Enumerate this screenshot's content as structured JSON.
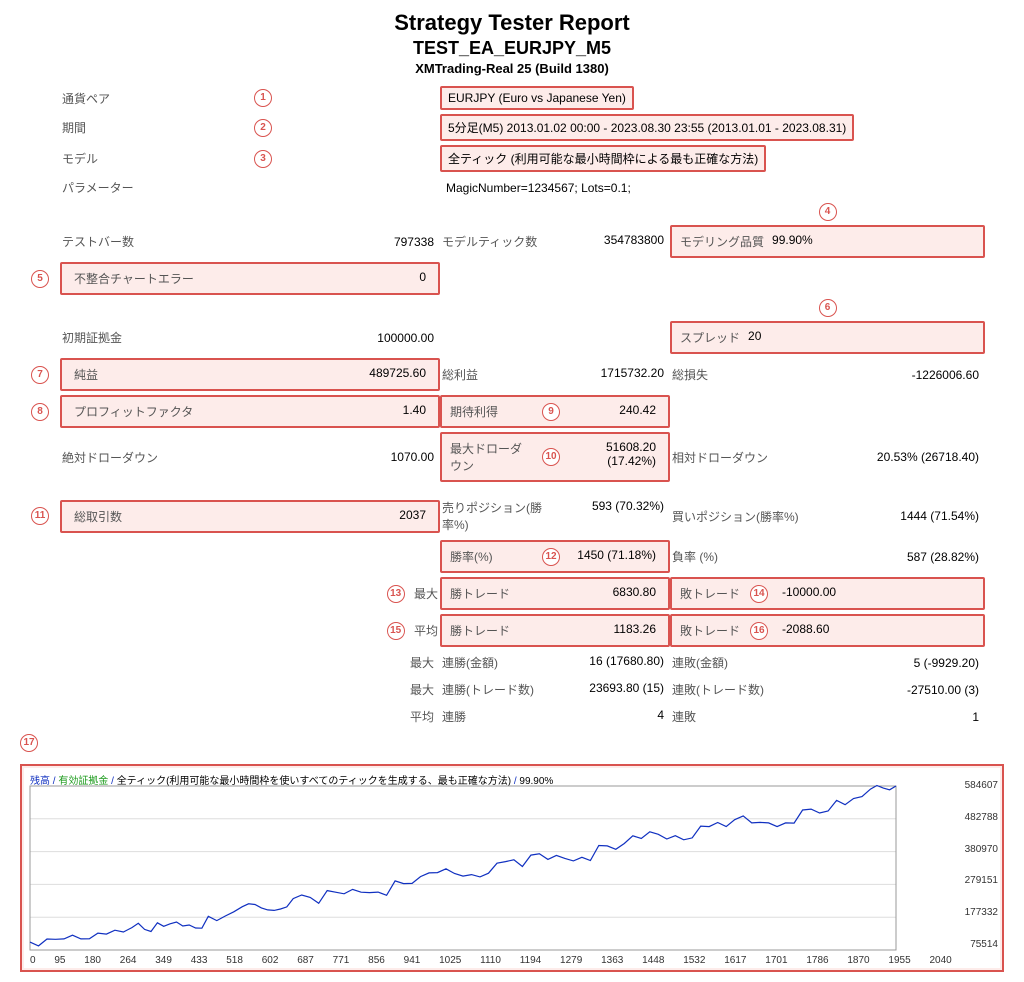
{
  "header": {
    "title": "Strategy Tester Report",
    "subtitle": "TEST_EA_EURJPY_M5",
    "server": "XMTrading-Real 25 (Build 1380)"
  },
  "marker_color": "#d9534f",
  "rows": {
    "pair": {
      "label": "通貨ペア",
      "value": "EURJPY (Euro vs Japanese Yen)",
      "num": "1"
    },
    "period": {
      "label": "期間",
      "value": "5分足(M5) 2013.01.02 00:00 - 2023.08.30 23:55 (2013.01.01 - 2023.08.31)",
      "num": "2"
    },
    "model": {
      "label": "モデル",
      "value": "全ティック (利用可能な最小時間枠による最も正確な方法)",
      "num": "3"
    },
    "params": {
      "label": "パラメーター",
      "value": "MagicNumber=1234567; Lots=0.1;"
    },
    "testbars": {
      "label": "テストバー数",
      "value": "797338"
    },
    "modelticks": {
      "label": "モデルティック数",
      "value": "354783800"
    },
    "quality": {
      "label": "モデリング品質",
      "value": "99.90%",
      "num": "4"
    },
    "mismatch": {
      "label": "不整合チャートエラー",
      "value": "0",
      "num": "5"
    },
    "initdep": {
      "label": "初期証拠金",
      "value": "100000.00"
    },
    "spread": {
      "label": "スプレッド",
      "value": "20",
      "num": "6"
    },
    "netprofit": {
      "label": "純益",
      "value": "489725.60",
      "num": "7"
    },
    "grossprofit": {
      "label": "総利益",
      "value": "1715732.20"
    },
    "grossloss": {
      "label": "総損失",
      "value": "-1226006.60"
    },
    "pf": {
      "label": "プロフィットファクタ",
      "value": "1.40",
      "num": "8"
    },
    "expected": {
      "label": "期待利得",
      "value": "240.42",
      "num": "9"
    },
    "absdd": {
      "label": "絶対ドローダウン",
      "value": "1070.00"
    },
    "maxdd": {
      "label": "最大ドローダウン",
      "value": "51608.20 (17.42%)",
      "num": "10"
    },
    "reldd": {
      "label": "相対ドローダウン",
      "value": "20.53% (26718.40)"
    },
    "totaltrades": {
      "label": "総取引数",
      "value": "2037",
      "num": "11"
    },
    "shortpos": {
      "label": "売りポジション(勝率%)",
      "value": "593 (70.32%)"
    },
    "longpos": {
      "label": "買いポジション(勝率%)",
      "value": "1444 (71.54%)"
    },
    "winrate": {
      "label": "勝率(%)",
      "value": "1450 (71.18%)",
      "num": "12"
    },
    "lossrate": {
      "label": "負率 (%)",
      "value": "587 (28.82%)"
    },
    "max": "最大",
    "avg": "平均",
    "wintrade": {
      "label": "勝トレード",
      "value1": "6830.80",
      "value2": "1183.26",
      "num1": "13",
      "num2": "15"
    },
    "losstrade": {
      "label": "敗トレード",
      "value1": "-10000.00",
      "value2": "-2088.60",
      "num1": "14",
      "num2": "16"
    },
    "maxconsecwin": {
      "label": "連勝(金額)",
      "value": "16 (17680.80)"
    },
    "maxconsecloss": {
      "label": "連敗(金額)",
      "value": "5 (-9929.20)"
    },
    "maxconsecwin2": {
      "label": "連勝(トレード数)",
      "value": "23693.80 (15)"
    },
    "maxconsecloss2": {
      "label": "連敗(トレード数)",
      "value": "-27510.00 (3)"
    },
    "avgconsecwin": {
      "label": "連勝",
      "value": "4"
    },
    "avgconsecloss": {
      "label": "連敗",
      "value": "1"
    }
  },
  "chart": {
    "num": "17",
    "legend_prefix": "残高",
    "legend_green": "有効証拠金",
    "legend_text": "全ティック(利用可能な最小時間枠を使いすべてのティックを生成する、最も正確な方法)",
    "legend_pct": "99.90%",
    "y_labels": [
      "584607",
      "482788",
      "380970",
      "279151",
      "177332",
      "75514"
    ],
    "x_labels": [
      "0",
      "95",
      "180",
      "264",
      "349",
      "433",
      "518",
      "602",
      "687",
      "771",
      "856",
      "941",
      "1025",
      "1110",
      "1194",
      "1279",
      "1363",
      "1448",
      "1532",
      "1617",
      "1701",
      "1786",
      "1870",
      "1955",
      "2040"
    ],
    "line_color": "#1030c0",
    "ymin": 75514,
    "ymax": 584607,
    "points": [
      [
        0,
        100000
      ],
      [
        80,
        110000
      ],
      [
        160,
        128000
      ],
      [
        240,
        145000
      ],
      [
        300,
        160000
      ],
      [
        360,
        150000
      ],
      [
        420,
        180000
      ],
      [
        500,
        210000
      ],
      [
        560,
        200000
      ],
      [
        620,
        235000
      ],
      [
        700,
        260000
      ],
      [
        780,
        255000
      ],
      [
        860,
        290000
      ],
      [
        940,
        315000
      ],
      [
        1020,
        305000
      ],
      [
        1100,
        345000
      ],
      [
        1180,
        370000
      ],
      [
        1260,
        360000
      ],
      [
        1340,
        400000
      ],
      [
        1420,
        430000
      ],
      [
        1500,
        420000
      ],
      [
        1580,
        460000
      ],
      [
        1660,
        480000
      ],
      [
        1740,
        470000
      ],
      [
        1820,
        510000
      ],
      [
        1900,
        540000
      ],
      [
        1980,
        575000
      ],
      [
        2040,
        584607
      ]
    ]
  }
}
